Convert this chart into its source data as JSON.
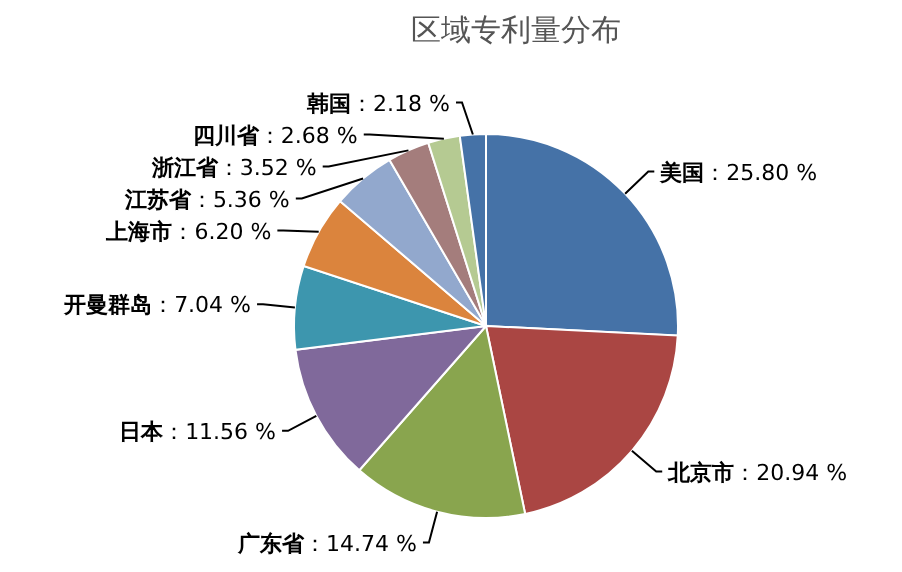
{
  "chart_data": {
    "type": "pie",
    "title": "区域专利量分布",
    "categories": [
      "美国",
      "北京市",
      "广东省",
      "日本",
      "开曼群岛",
      "上海市",
      "江苏省",
      "浙江省",
      "四川省",
      "韩国"
    ],
    "values": [
      25.8,
      20.94,
      14.74,
      11.56,
      7.04,
      6.2,
      5.36,
      3.52,
      2.68,
      2.18
    ],
    "value_labels": [
      "：25.80 %",
      "：20.94 %",
      "：14.74 %",
      "：11.56 %",
      "：7.04 %",
      "：6.20 %",
      "：5.36 %",
      "：3.52 %",
      "：2.68 %",
      "：2.18 %"
    ],
    "colors": [
      "#4572a7",
      "#aa4643",
      "#89a54e",
      "#80699b",
      "#3d96ae",
      "#db843d",
      "#92a8cd",
      "#a47d7c",
      "#b5ca92",
      "#4572a7"
    ]
  }
}
